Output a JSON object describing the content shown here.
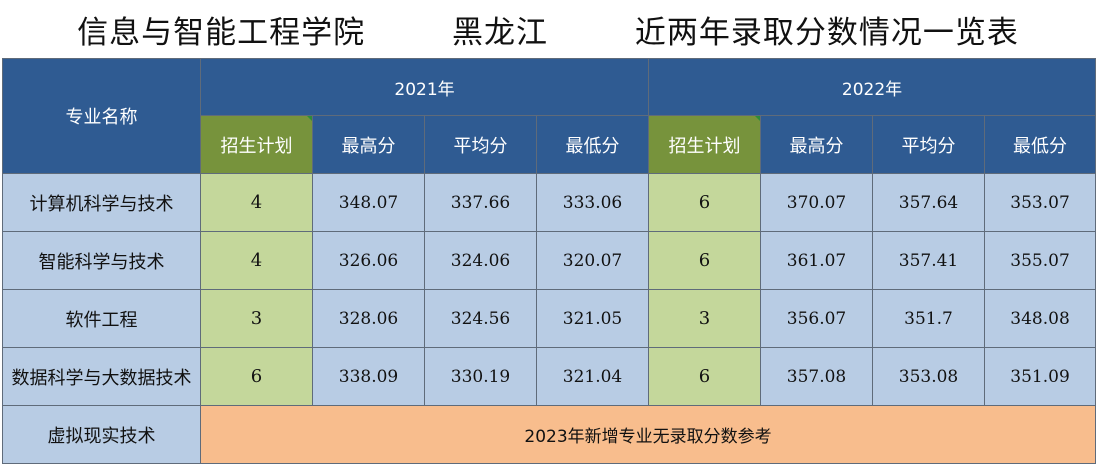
{
  "title": "信息与智能工程学院        黑龙江        近两年录取分数情况一览表",
  "header": {
    "major_label": "专业名称",
    "years": [
      "2021年",
      "2022年"
    ],
    "columns": [
      "招生计划",
      "最高分",
      "平均分",
      "最低分"
    ]
  },
  "rows": [
    {
      "name": "计算机科学与技术",
      "y2021": [
        "4",
        "348.07",
        "337.66",
        "333.06"
      ],
      "y2022": [
        "6",
        "370.07",
        "357.64",
        "353.07"
      ]
    },
    {
      "name": "智能科学与技术",
      "y2021": [
        "4",
        "326.06",
        "324.06",
        "320.07"
      ],
      "y2022": [
        "6",
        "361.07",
        "357.41",
        "355.07"
      ]
    },
    {
      "name": "软件工程",
      "y2021": [
        "3",
        "328.06",
        "324.56",
        "321.05"
      ],
      "y2022": [
        "3",
        "356.07",
        "351.7",
        "348.08"
      ]
    },
    {
      "name": "数据科学与大数据技术",
      "y2021": [
        "6",
        "338.09",
        "330.19",
        "321.04"
      ],
      "y2022": [
        "6",
        "357.08",
        "353.08",
        "351.09"
      ]
    }
  ],
  "last_row": {
    "name": "虚拟现实技术",
    "note": "2023年新增专业无录取分数参考"
  },
  "colors": {
    "header_blue": "#2f5b92",
    "header_green": "#77933c",
    "cell_blue": "#b8cce4",
    "cell_green": "#c4d79b",
    "note_orange": "#f8bd8d"
  }
}
